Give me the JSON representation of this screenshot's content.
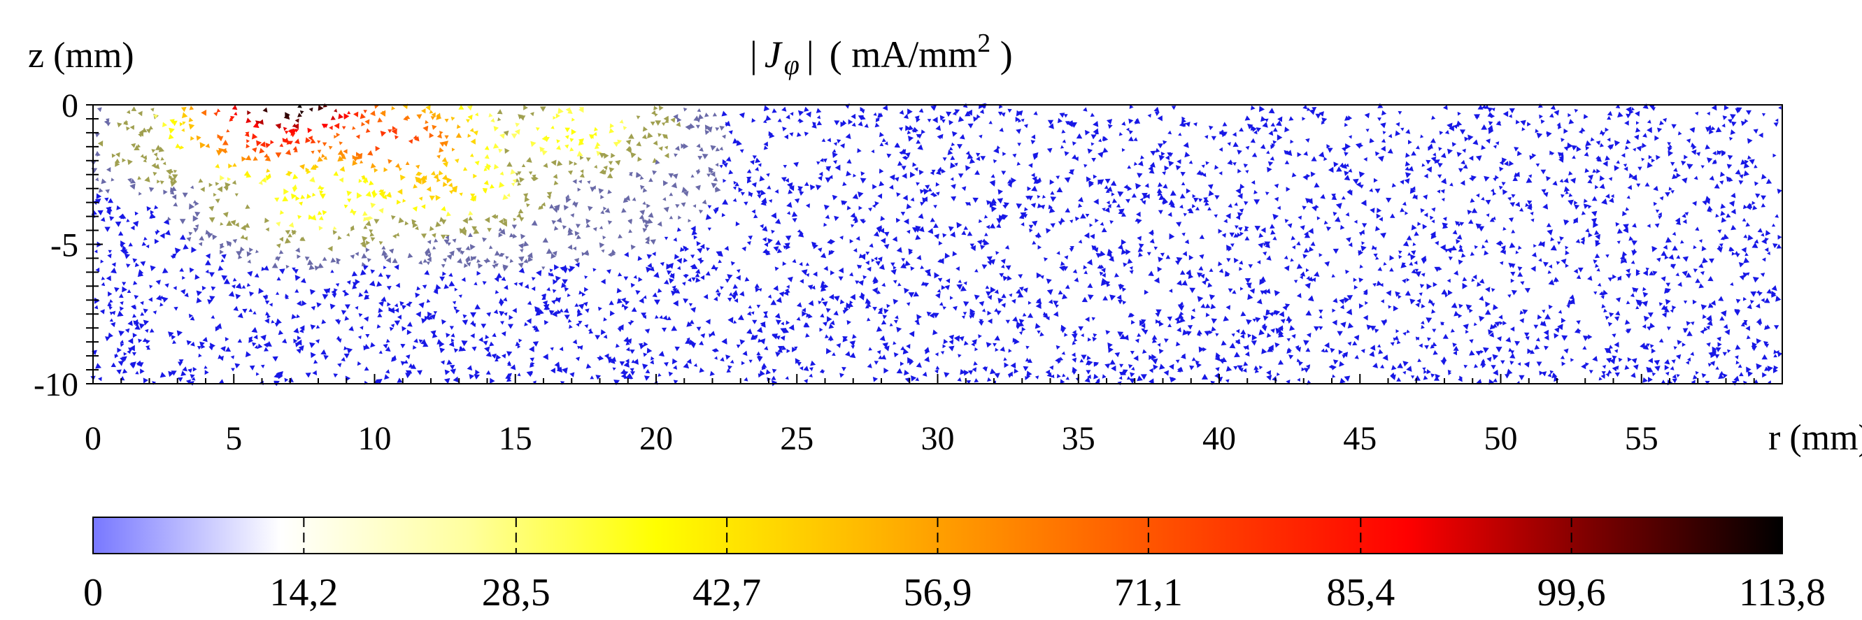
{
  "chart_data": {
    "type": "heatmap",
    "title": {
      "bar_left": "|",
      "symbol": "J",
      "subscript": "φ",
      "bar_right": "|",
      "unit_prefix": "( mA/mm",
      "unit_exp": "2",
      "unit_suffix": " )"
    },
    "xlabel": "r (mm)",
    "ylabel": "z (mm)",
    "xlim": [
      0,
      60
    ],
    "ylim": [
      -10,
      0
    ],
    "x_ticks": [
      "0",
      "5",
      "10",
      "15",
      "20",
      "25",
      "30",
      "35",
      "40",
      "45",
      "50",
      "55"
    ],
    "x_tick_values": [
      0,
      5,
      10,
      15,
      20,
      25,
      30,
      35,
      40,
      45,
      50,
      55
    ],
    "y_ticks": [
      "0",
      "-5",
      "-10"
    ],
    "y_tick_values": [
      0,
      -5,
      -10
    ],
    "colorbar": {
      "min": 0,
      "max": 113.8,
      "tick_labels": [
        "0",
        "14,2",
        "28,5",
        "42,7",
        "56,9",
        "71,1",
        "85,4",
        "99,6",
        "113,8"
      ],
      "tick_values": [
        0,
        14.2,
        28.5,
        42.7,
        56.9,
        71.1,
        85.4,
        99.6,
        113.8
      ],
      "colors": [
        "#7878ff",
        "#ffffff",
        "#ffff9e",
        "#ffff00",
        "#ffc000",
        "#ff7f00",
        "#ff3d00",
        "#ff0000",
        "#7a0000",
        "#000000"
      ]
    },
    "hotspots": [
      {
        "r": 7.0,
        "z": 0.0,
        "value": 113.8
      },
      {
        "r": 6.5,
        "z": -1.0,
        "value": 85.0
      },
      {
        "r": 10.5,
        "z": -1.2,
        "value": 78.0
      },
      {
        "r": 12.0,
        "z": -2.8,
        "value": 50.0
      },
      {
        "r": 8.0,
        "z": -3.5,
        "value": 40.0
      },
      {
        "r": 17.0,
        "z": -1.0,
        "value": 38.0
      },
      {
        "r": 3.5,
        "z": -1.5,
        "value": 30.0
      }
    ]
  }
}
